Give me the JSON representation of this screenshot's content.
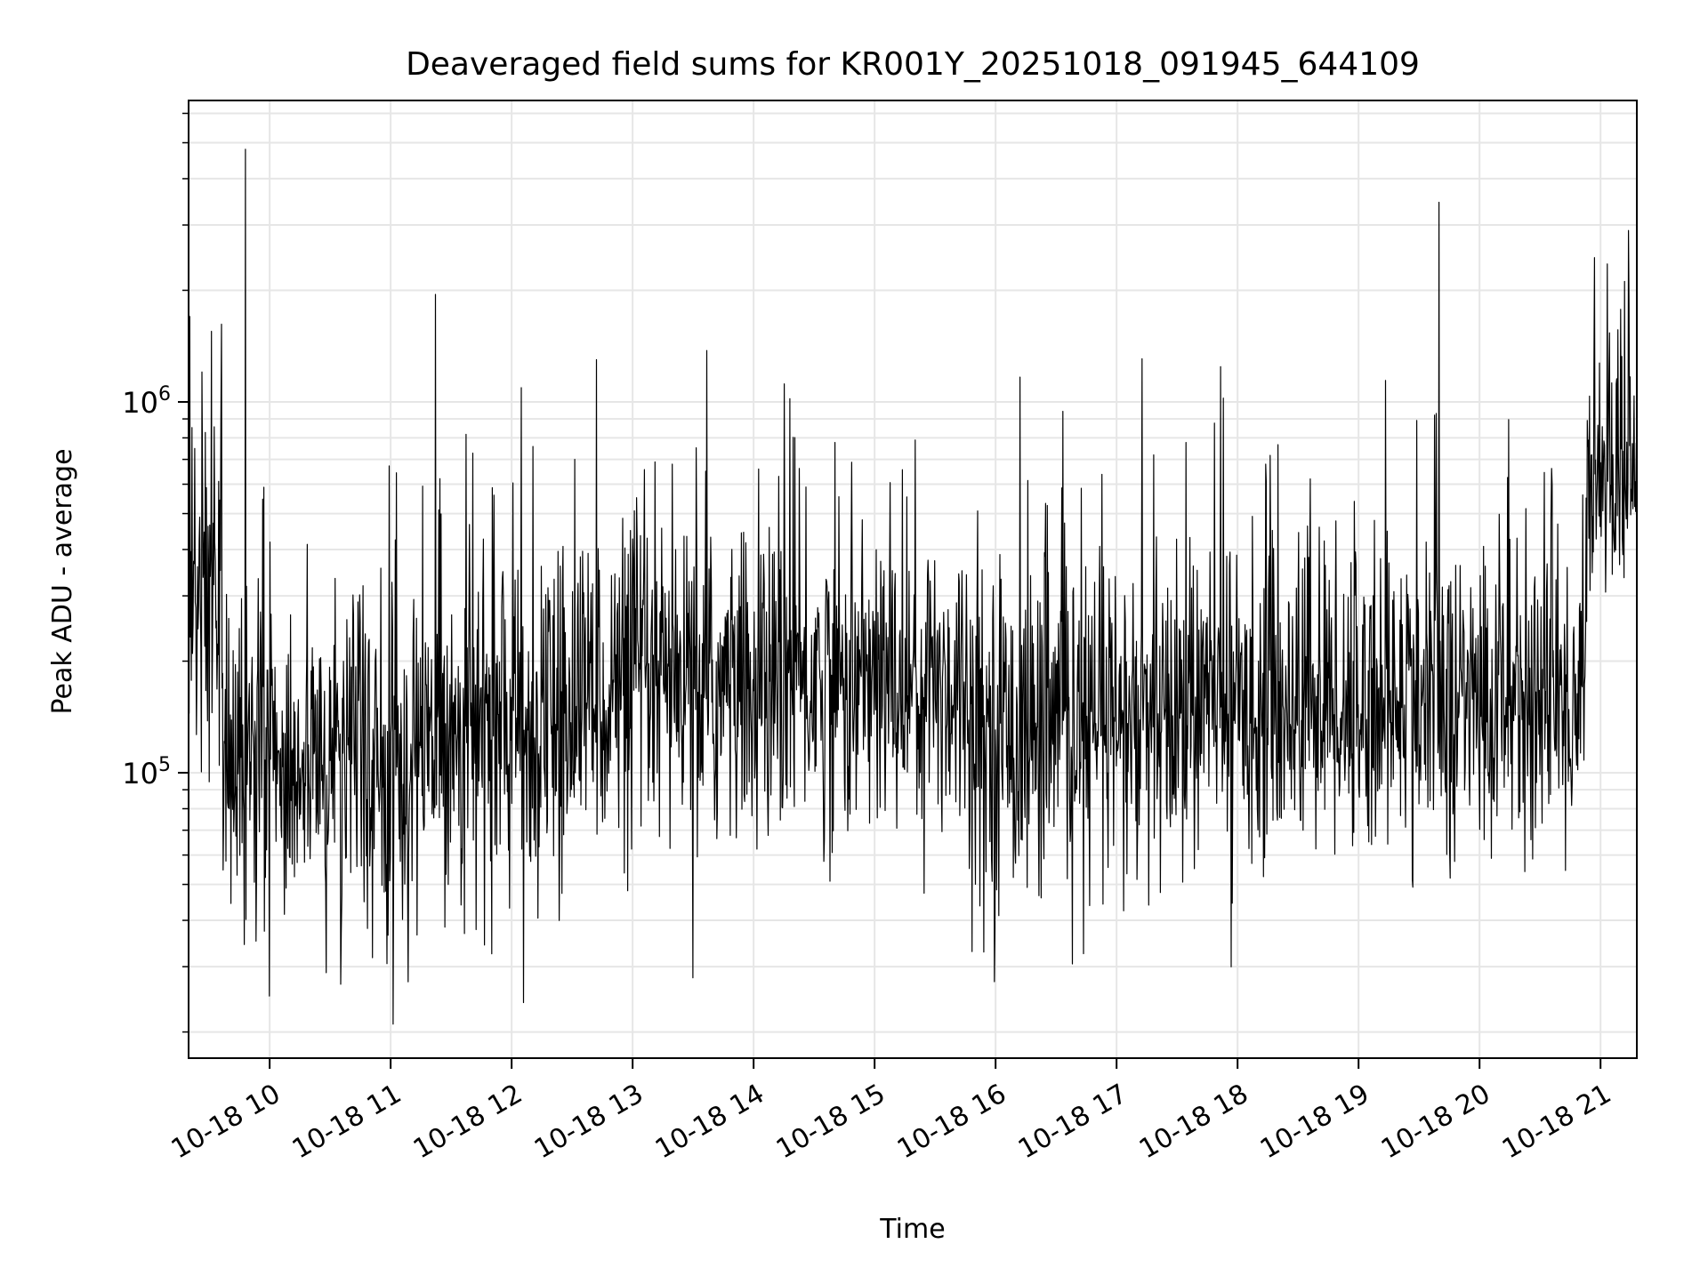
{
  "chart_data": {
    "type": "line",
    "title": "Deaveraged field sums for KR001Y_20251018_091945_644109",
    "xlabel": "Time",
    "ylabel": "Peak ADU - average",
    "yscale": "log",
    "ylim": [
      17000,
      6500000
    ],
    "xlim": [
      9.33,
      21.3
    ],
    "grid": true,
    "line_color": "#000000",
    "grid_color": "#e6e6e6",
    "x_ticks": [
      {
        "value": 10,
        "label": "10-18 10"
      },
      {
        "value": 11,
        "label": "10-18 11"
      },
      {
        "value": 12,
        "label": "10-18 12"
      },
      {
        "value": 13,
        "label": "10-18 13"
      },
      {
        "value": 14,
        "label": "10-18 14"
      },
      {
        "value": 15,
        "label": "10-18 15"
      },
      {
        "value": 16,
        "label": "10-18 16"
      },
      {
        "value": 17,
        "label": "10-18 17"
      },
      {
        "value": 18,
        "label": "10-18 18"
      },
      {
        "value": 19,
        "label": "10-18 19"
      },
      {
        "value": 20,
        "label": "10-18 20"
      },
      {
        "value": 21,
        "label": "10-18 21"
      }
    ],
    "y_major_ticks": [
      {
        "value": 100000,
        "base": "10",
        "exp": "5"
      },
      {
        "value": 1000000,
        "base": "10",
        "exp": "6"
      }
    ],
    "baseline_segments": [
      {
        "t0": 9.33,
        "t1": 9.6,
        "center": 300000,
        "spread": 0.55
      },
      {
        "t0": 9.6,
        "t1": 11.3,
        "center": 105000,
        "spread": 0.45
      },
      {
        "t0": 11.3,
        "t1": 12.5,
        "center": 130000,
        "spread": 0.45
      },
      {
        "t0": 12.5,
        "t1": 14.2,
        "center": 165000,
        "spread": 0.42
      },
      {
        "t0": 14.2,
        "t1": 15.8,
        "center": 175000,
        "spread": 0.42
      },
      {
        "t0": 15.8,
        "t1": 17.5,
        "center": 130000,
        "spread": 0.45
      },
      {
        "t0": 17.5,
        "t1": 20.88,
        "center": 155000,
        "spread": 0.42
      },
      {
        "t0": 20.88,
        "t1": 21.3,
        "center": 620000,
        "spread": 0.3
      }
    ],
    "spikes": [
      {
        "t": 9.34,
        "value": 1700000
      },
      {
        "t": 9.52,
        "value": 1550000
      },
      {
        "t": 9.6,
        "value": 1620000
      },
      {
        "t": 9.8,
        "value": 4800000
      },
      {
        "t": 10.0,
        "value": 25000
      },
      {
        "t": 11.02,
        "value": 21000
      },
      {
        "t": 11.37,
        "value": 1950000
      },
      {
        "t": 12.1,
        "value": 24000
      },
      {
        "t": 12.52,
        "value": 700000
      },
      {
        "t": 12.7,
        "value": 1300000
      },
      {
        "t": 13.5,
        "value": 28000
      },
      {
        "t": 14.3,
        "value": 1020000
      },
      {
        "t": 18.6,
        "value": 620000
      },
      {
        "t": 20.95,
        "value": 2450000
      },
      {
        "t": 21.23,
        "value": 2900000
      }
    ]
  }
}
